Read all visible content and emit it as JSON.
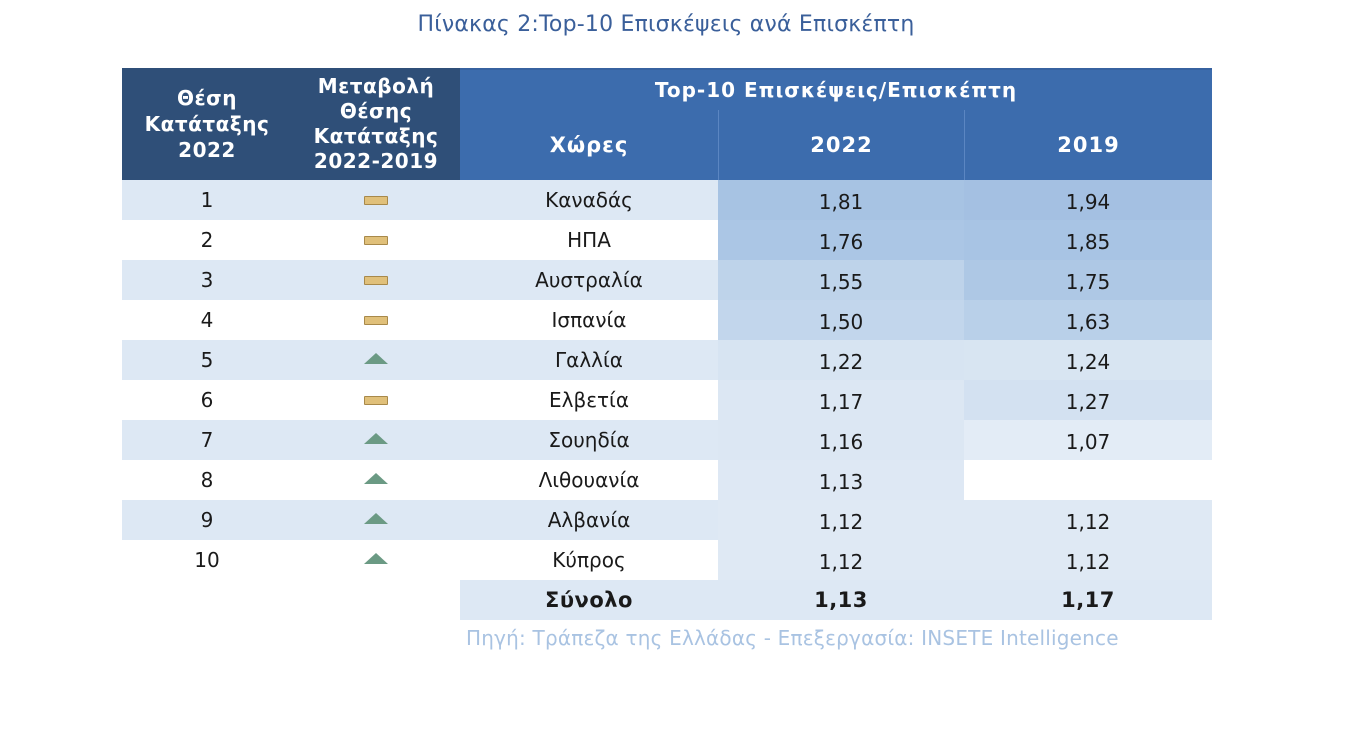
{
  "title": "Πίνακας 2:Top-10 Επισκέψεις ανά Επισκέπτη",
  "headers": {
    "position": [
      "Θέση",
      "Κατάταξης",
      "2022"
    ],
    "change": [
      "Μεταβολή",
      "Θέσης",
      "Κατάταξης",
      "2022-2019"
    ],
    "group": "Top-10 Επισκέψεις/Επισκέπτη",
    "country": "Χώρες",
    "year_a": "2022",
    "year_b": "2019"
  },
  "colors": {
    "header_dark": "#2f4f78",
    "header_blue": "#3c6cad",
    "row_stripe": "#dde8f4",
    "icon_unchanged": "#e0c07a",
    "icon_up": "#6b9a84"
  },
  "rows": [
    {
      "rank": "1",
      "change": "unchanged-icon",
      "country": "Καναδάς",
      "v2022": "1,81",
      "v2019": "1,94",
      "bg2022": "#a7c3e3",
      "bg2019": "#a4c0e2"
    },
    {
      "rank": "2",
      "change": "unchanged-icon",
      "country": "ΗΠΑ",
      "v2022": "1,76",
      "v2019": "1,85",
      "bg2022": "#abc6e5",
      "bg2019": "#a8c4e4"
    },
    {
      "rank": "3",
      "change": "unchanged-icon",
      "country": "Αυστραλία",
      "v2022": "1,55",
      "v2019": "1,75",
      "bg2022": "#bed3ea",
      "bg2019": "#aec8e5"
    },
    {
      "rank": "4",
      "change": "unchanged-icon",
      "country": "Ισπανία",
      "v2022": "1,50",
      "v2019": "1,63",
      "bg2022": "#c2d6ec",
      "bg2019": "#b9d0e9"
    },
    {
      "rank": "5",
      "change": "up-triangle-icon",
      "country": "Γαλλία",
      "v2022": "1,22",
      "v2019": "1,24",
      "bg2022": "#d7e4f2",
      "bg2019": "#d8e5f2"
    },
    {
      "rank": "6",
      "change": "unchanged-icon",
      "country": "Ελβετία",
      "v2022": "1,17",
      "v2019": "1,27",
      "bg2022": "#dce7f3",
      "bg2019": "#d3e1f1"
    },
    {
      "rank": "7",
      "change": "up-triangle-icon",
      "country": "Σουηδία",
      "v2022": "1,16",
      "v2019": "1,07",
      "bg2022": "#dce7f3",
      "bg2019": "#e3ecf6"
    },
    {
      "rank": "8",
      "change": "up-triangle-icon",
      "country": "Λιθουανία",
      "v2022": "1,13",
      "v2019": "",
      "bg2022": "#dee8f4",
      "bg2019": "#ffffff"
    },
    {
      "rank": "9",
      "change": "up-triangle-icon",
      "country": "Αλβανία",
      "v2022": "1,12",
      "v2019": "1,12",
      "bg2022": "#dfe9f4",
      "bg2019": "#dfe9f4"
    },
    {
      "rank": "10",
      "change": "up-triangle-icon",
      "country": "Κύπρος",
      "v2022": "1,12",
      "v2019": "1,12",
      "bg2022": "#dfe9f4",
      "bg2019": "#dfe9f4"
    }
  ],
  "total": {
    "label": "Σύνολο",
    "v2022": "1,13",
    "v2019": "1,17"
  },
  "source": "Πηγή: Τράπεζα της Ελλάδας - Επεξεργασία: INSETE Intelligence"
}
